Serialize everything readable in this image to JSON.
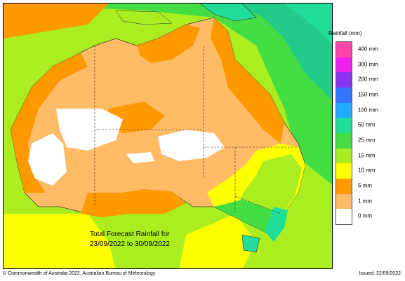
{
  "map": {
    "legend_title": "Rainfall (mm)",
    "caption_line1": "Total Forecast Rainfall for",
    "caption_line2": "23/09/2022 to 30/09/2022",
    "copyright": "© Commonwealth of Australia 2022, Australian Bureau of Meteorology",
    "issued": "Issued: 22/09/2022",
    "legend": [
      {
        "label": "400 mm",
        "color": "#ff44aa"
      },
      {
        "label": "300 mm",
        "color": "#ee22ee"
      },
      {
        "label": "200 mm",
        "color": "#8833ee"
      },
      {
        "label": "150 mm",
        "color": "#3377ff"
      },
      {
        "label": "100 mm",
        "color": "#22aaff"
      },
      {
        "label": "50 mm",
        "color": "#22dd99"
      },
      {
        "label": "25 mm",
        "color": "#44dd44"
      },
      {
        "label": "15 mm",
        "color": "#aaee22"
      },
      {
        "label": "10 mm",
        "color": "#ffff00"
      },
      {
        "label": "5 mm",
        "color": "#ff9900"
      },
      {
        "label": "1 mm",
        "color": "#ffbb66"
      },
      {
        "label": "0 mm",
        "color": "#ffffff"
      }
    ],
    "colors": {
      "ocean_north": "#22cc88",
      "ocean_light": "#44dd44",
      "land_dry": "#ffbb66",
      "land_light": "#ff9900",
      "land_none": "#ffffff",
      "land_green": "#aaee22",
      "coast_teal": "#22dd99"
    }
  }
}
